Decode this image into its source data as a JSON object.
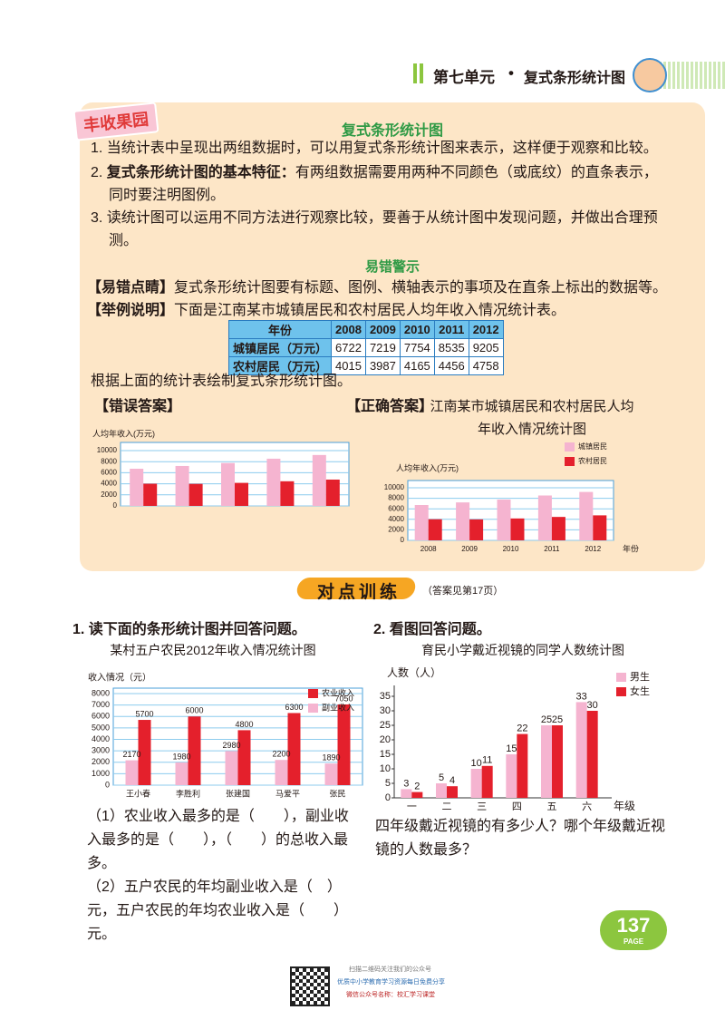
{
  "header": {
    "unit": "第七单元",
    "topic": "复式条形统计图"
  },
  "summary": {
    "label": "丰收果园",
    "title": "复式条形统计图",
    "points": [
      {
        "num": "1.",
        "text": "当统计表中呈现出两组数据时，可以用复式条形统计图来表示，这样便于观察和比较。"
      },
      {
        "num": "2.",
        "bold": "复式条形统计图的基本特征：",
        "text": "有两组数据需要用两种不同颜色（或底纹）的直条表示，同时要注明图例。"
      },
      {
        "num": "3.",
        "text": "读统计图可以运用不同方法进行观察比较，要善于从统计图中发现问题，并做出合理预测。"
      }
    ],
    "warning_title": "易错警示",
    "tip": {
      "tag": "【易错点睛】",
      "text": "复式条形统计图要有标题、图例、横轴表示的事项及在直条上标出的数据等。"
    },
    "example": {
      "tag": "【举例说明】",
      "text": "下面是江南某市城镇居民和农村居民人均年收入情况统计表。"
    },
    "task": "根据上面的统计表绘制复式条形统计图。",
    "wrong_tag": "【错误答案】",
    "right_tag": "【正确答案】"
  },
  "table": {
    "header": [
      "年份",
      "2008",
      "2009",
      "2010",
      "2011",
      "2012"
    ],
    "rows": [
      [
        "城镇居民（万元）",
        6722,
        7219,
        7754,
        8535,
        9205
      ],
      [
        "农村居民（万元）",
        4015,
        3987,
        4165,
        4456,
        4758
      ]
    ]
  },
  "chart_data": [
    {
      "type": "bar",
      "y_label": "人均年收入(万元)",
      "categories": [
        null,
        null,
        null,
        null,
        null
      ],
      "series": [
        {
          "color": "#f5b4d0",
          "values": [
            6722,
            7219,
            7754,
            8535,
            9205
          ]
        },
        {
          "color": "#e4202c",
          "values": [
            4015,
            3987,
            4165,
            4456,
            4758
          ]
        }
      ],
      "ylim": [
        0,
        10000
      ],
      "yticks": [
        0,
        2000,
        4000,
        6000,
        8000,
        10000
      ],
      "grid": true
    },
    {
      "type": "bar",
      "title": "江南某市城镇居民和农村居民人均年收入情况统计图",
      "y_label": "人均年收入(万元)",
      "x_label": "年份",
      "categories": [
        "2008",
        "2009",
        "2010",
        "2011",
        "2012"
      ],
      "series": [
        {
          "name": "城镇居民",
          "color": "#f5b4d0",
          "values": [
            6722,
            7219,
            7754,
            8535,
            9205
          ]
        },
        {
          "name": "农村居民",
          "color": "#e4202c",
          "values": [
            4015,
            3987,
            4165,
            4456,
            4758
          ]
        }
      ],
      "ylim": [
        0,
        10000
      ],
      "yticks": [
        0,
        2000,
        4000,
        6000,
        8000,
        10000
      ],
      "grid": true,
      "legend": "upper right"
    },
    {
      "type": "bar",
      "title": "某村五户农民2012年收入情况统计图",
      "y_label": "收入情况（元）",
      "categories": [
        "王小春",
        "李胜利",
        "张建国",
        "马爱平",
        "张民"
      ],
      "series": [
        {
          "name": "农业收入",
          "color": "#e4202c",
          "values": [
            5700,
            6000,
            4800,
            6300,
            7050
          ]
        },
        {
          "name": "副业收入",
          "color": "#f5b4d0",
          "values": [
            2170,
            1980,
            2980,
            2200,
            1890
          ]
        }
      ],
      "ylim": [
        0,
        8000
      ],
      "yticks": [
        0,
        1000,
        2000,
        3000,
        4000,
        5000,
        6000,
        7000,
        8000
      ],
      "grid": true,
      "legend": "upper right",
      "data_labels": true
    },
    {
      "type": "bar",
      "title": "育民小学戴近视镜的同学人数统计图",
      "y_label": "人数（人）",
      "x_label": "年级",
      "categories": [
        "一",
        "二",
        "三",
        "四",
        "五",
        "六"
      ],
      "series": [
        {
          "name": "男生",
          "color": "#f5b4d0",
          "values": [
            3,
            5,
            10,
            15,
            25,
            33
          ]
        },
        {
          "name": "女生",
          "color": "#e4202c",
          "values": [
            2,
            4,
            11,
            22,
            25,
            30
          ]
        }
      ],
      "ylim": [
        0,
        35
      ],
      "yticks": [
        0,
        5,
        10,
        15,
        20,
        25,
        30,
        35
      ],
      "grid": false,
      "legend": "upper right",
      "data_labels": true
    }
  ],
  "exercises": {
    "title": "对点训练",
    "answer_ref": "（答案见第17页）",
    "q1": {
      "num": "1.",
      "prompt": "读下面的条形统计图并回答问题。",
      "questions": [
        "（1）农业收入最多的是（　　），副业收入最多的是（　　），（　　）的总收入最多。",
        "（2）五户农民的年均副业收入是（　）元，五户农民的年均农业收入是（　　）元。"
      ]
    },
    "q2": {
      "num": "2.",
      "prompt": "看图回答问题。",
      "question": "四年级戴近视镜的有多少人？哪个年级戴近视镜的人数最多？"
    }
  },
  "page": {
    "number": "137",
    "word": "PAGE"
  },
  "footer": {
    "scan": "扫描二维码关注我们的公众号",
    "share": "优质中小学教育学习资源每日免费分享",
    "account": "微信公众号名称：校汇学习课堂"
  }
}
